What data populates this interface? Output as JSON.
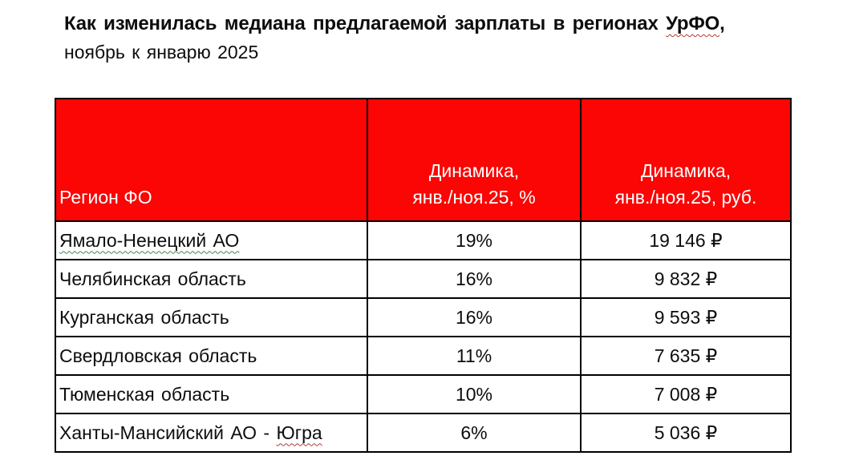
{
  "title": {
    "line1_prefix": "Как изменилась медиана предлагаемой зарплаты в регионах ",
    "line1_marked": "УрФО",
    "line1_suffix": ",",
    "line2": "ноябрь к январю 2025"
  },
  "table": {
    "header": {
      "region": "Регион ФО",
      "pct": [
        "Динамика,",
        "янв./ноя.25,  %"
      ],
      "rub": [
        "Динамика,",
        "янв./ноя.25,  руб."
      ]
    },
    "rows": [
      {
        "region_parts": [
          {
            "text": "Ямало-Ненецкий АО",
            "squiggle": "green"
          }
        ],
        "pct": "19%",
        "rub": "19 146 ₽"
      },
      {
        "region_parts": [
          {
            "text": "Челябинская область",
            "squiggle": "none"
          }
        ],
        "pct": "16%",
        "rub": "9 832 ₽"
      },
      {
        "region_parts": [
          {
            "text": "Курганская область",
            "squiggle": "none"
          }
        ],
        "pct": "16%",
        "rub": "9 593 ₽"
      },
      {
        "region_parts": [
          {
            "text": "Свердловская область",
            "squiggle": "none"
          }
        ],
        "pct": "11%",
        "rub": "7 635 ₽"
      },
      {
        "region_parts": [
          {
            "text": "Тюменская область",
            "squiggle": "none"
          }
        ],
        "pct": "10%",
        "rub": "7 008 ₽"
      },
      {
        "region_parts": [
          {
            "text": "Ханты-Мансийский АО - ",
            "squiggle": "none"
          },
          {
            "text": "Югра",
            "squiggle": "red"
          }
        ],
        "pct": "6%",
        "rub": "5 036 ₽"
      }
    ]
  },
  "colors": {
    "header_bg": "#FB0505",
    "header_text": "#FFFFFF",
    "border": "#000000",
    "spellcheck_red": "#B23A38",
    "grammar_green": "#3E8A46"
  }
}
